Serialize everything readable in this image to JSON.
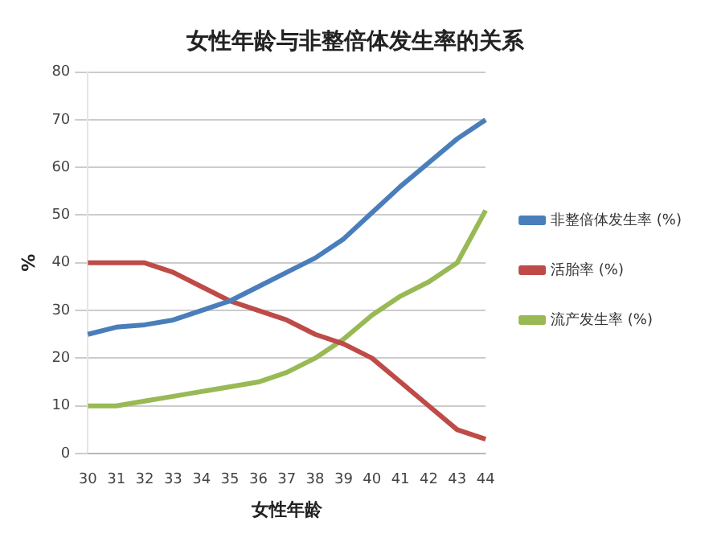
{
  "chart_data": {
    "type": "line",
    "title": "女性年龄与非整倍体发生率的关系",
    "xlabel": "女性年龄",
    "ylabel": "%",
    "categories": [
      "30",
      "31",
      "32",
      "33",
      "34",
      "35",
      "36",
      "37",
      "38",
      "39",
      "40",
      "41",
      "42",
      "43",
      "44"
    ],
    "series": [
      {
        "name": "非整倍体发生率 (%)",
        "color": "#4a7ebb",
        "values": [
          25,
          26.5,
          27,
          28,
          30,
          32,
          35,
          38,
          41,
          45,
          50.5,
          56,
          61,
          66,
          70
        ]
      },
      {
        "name": "活胎率 (%)",
        "color": "#be4b48",
        "values": [
          40,
          40,
          40,
          38,
          35,
          32,
          30,
          28,
          25,
          23,
          20,
          15,
          10,
          5,
          3
        ]
      },
      {
        "name": "流产发生率 (%)",
        "color": "#98b954",
        "values": [
          10,
          10,
          11,
          12,
          13,
          14,
          15,
          17,
          20,
          24,
          29,
          33,
          36,
          40,
          51
        ]
      }
    ],
    "ylim": [
      0,
      80
    ],
    "yticks": [
      0,
      10,
      20,
      30,
      40,
      50,
      60,
      70,
      80
    ],
    "grid": "y",
    "legend": "right",
    "marker": "none",
    "line_style": "solid"
  }
}
